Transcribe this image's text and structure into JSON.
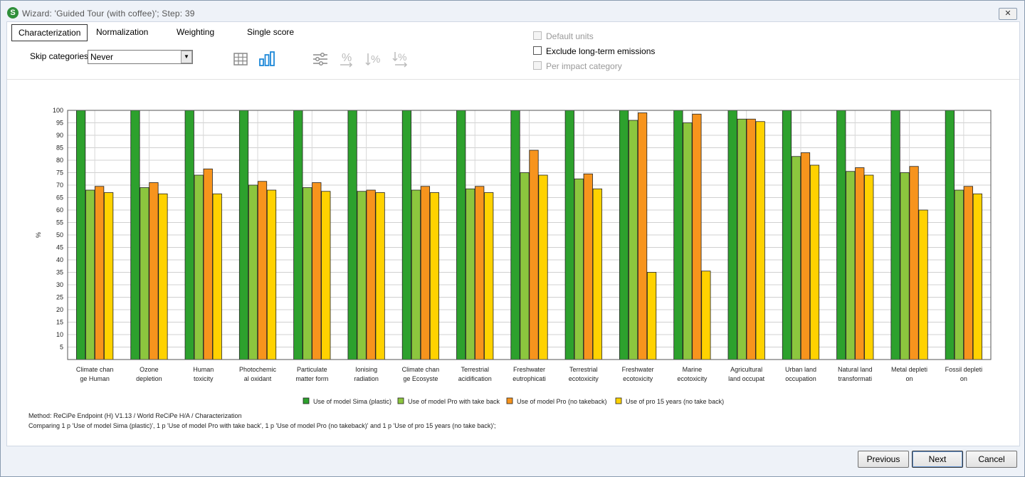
{
  "window": {
    "title": "Wizard: 'Guided Tour (with coffee)';   Step: 39",
    "close_label": "✕",
    "app_icon": "S"
  },
  "tabs": [
    {
      "label": "Characterization",
      "active": true
    },
    {
      "label": "Normalization",
      "active": false
    },
    {
      "label": "Weighting",
      "active": false
    },
    {
      "label": "Single score",
      "active": false
    }
  ],
  "skip": {
    "label": "Skip categories",
    "value": "Never"
  },
  "toolbar_icons": [
    "table-icon",
    "bar-chart-icon",
    "settings-sliders-icon",
    "percent-icon",
    "sort-percent-down-icon",
    "sort-percent-arrow-icon"
  ],
  "options": {
    "default_units": "Default units",
    "exclude_longterm": "Exclude long-term emissions",
    "per_impact": "Per impact category"
  },
  "footer": {
    "method": "Method: ReCiPe Endpoint (H) V1.13 / World ReCiPe H/A / Characterization",
    "compare": "Comparing 1 p 'Use of model Sima (plastic)', 1 p 'Use of model Pro with take back', 1 p 'Use of model Pro (no takeback)' and 1 p 'Use of pro 15 years (no take back)';"
  },
  "buttons": {
    "previous": "Previous",
    "next": "Next",
    "cancel": "Cancel"
  },
  "chart_data": {
    "type": "bar",
    "ylabel": "%",
    "ylim": [
      0,
      100
    ],
    "yticks": [
      5,
      10,
      15,
      20,
      25,
      30,
      35,
      40,
      45,
      50,
      55,
      60,
      65,
      70,
      75,
      80,
      85,
      90,
      95,
      100
    ],
    "grid": true,
    "legend_position": "bottom",
    "categories": [
      [
        "Climate chan",
        "ge Human"
      ],
      [
        "Ozone",
        "depletion"
      ],
      [
        "Human",
        "toxicity"
      ],
      [
        "Photochemic",
        "al oxidant"
      ],
      [
        "Particulate",
        "matter form"
      ],
      [
        "Ionising",
        "radiation"
      ],
      [
        "Climate chan",
        "ge Ecosyste"
      ],
      [
        "Terrestrial",
        "acidification"
      ],
      [
        "Freshwater",
        "eutrophicati"
      ],
      [
        "Terrestrial",
        "ecotoxicity"
      ],
      [
        "Freshwater",
        "ecotoxicity"
      ],
      [
        "Marine",
        "ecotoxicity"
      ],
      [
        "Agricultural",
        "land occupat"
      ],
      [
        "Urban land",
        "occupation"
      ],
      [
        "Natural land",
        "transformati"
      ],
      [
        "Metal depleti",
        "on"
      ],
      [
        "Fossil depleti",
        "on"
      ]
    ],
    "series": [
      {
        "name": "Use of model Sima (plastic)",
        "color": "#2da12d",
        "values": [
          100,
          100,
          100,
          100,
          100,
          100,
          100,
          100,
          100,
          100,
          100,
          100,
          100,
          100,
          100,
          100,
          100
        ]
      },
      {
        "name": "Use of model Pro with take back",
        "color": "#8cc63e",
        "values": [
          68,
          69,
          74,
          70,
          69,
          67.5,
          68,
          68.5,
          75,
          72.5,
          96,
          95,
          96.5,
          81.5,
          75.5,
          75,
          68
        ]
      },
      {
        "name": "Use of model Pro (no takeback)",
        "color": "#f7941d",
        "values": [
          69.5,
          71,
          76.5,
          71.5,
          71,
          68,
          69.5,
          69.5,
          84,
          74.5,
          99,
          98.5,
          96.5,
          83,
          77,
          77.5,
          69.5
        ]
      },
      {
        "name": "Use of pro 15 years (no take back)",
        "color": "#ffd200",
        "values": [
          67,
          66.5,
          66.5,
          68,
          67.5,
          67,
          67,
          67,
          74,
          68.5,
          35,
          35.5,
          95.5,
          78,
          74,
          60,
          66.5
        ]
      }
    ]
  }
}
